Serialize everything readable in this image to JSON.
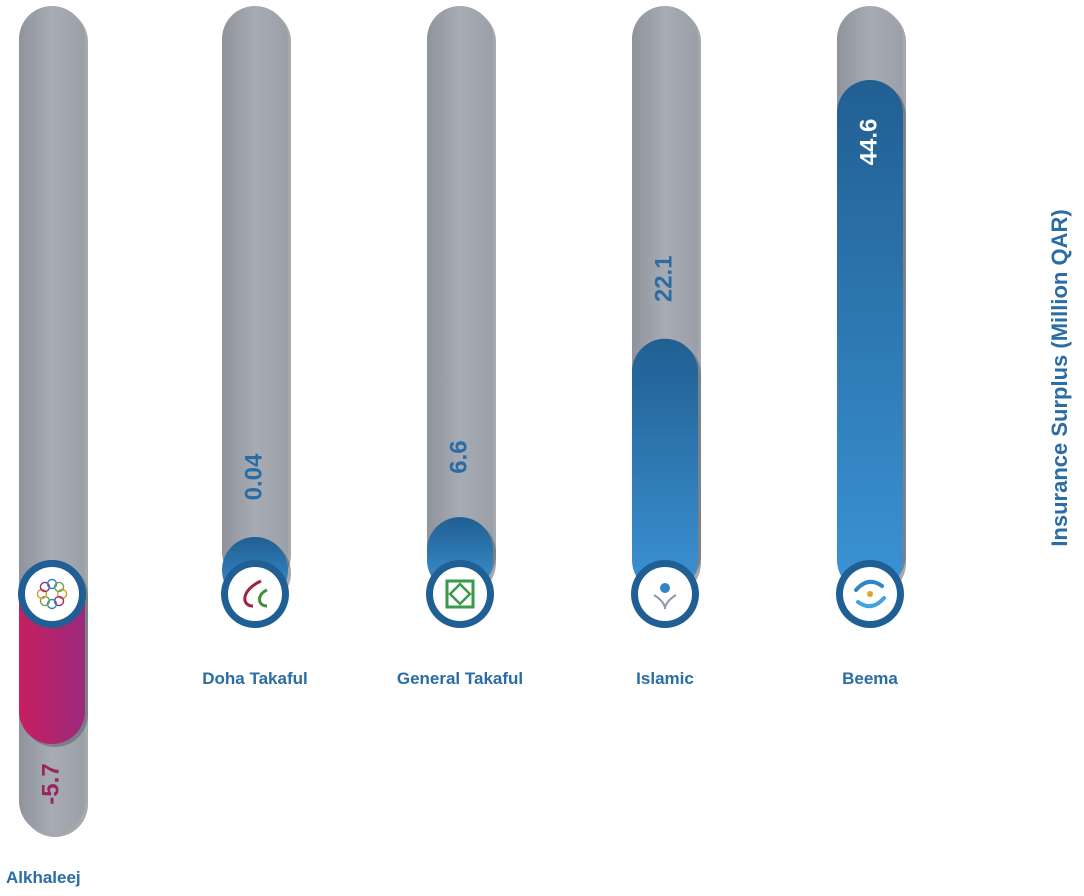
{
  "chart_data": {
    "type": "bar",
    "ylabel": "Insurance Surplus (Million QAR)",
    "categories": [
      "Alkhaleej",
      "Doha Takaful",
      "General Takaful",
      "Islamic",
      "Beema"
    ],
    "values": [
      -5.7,
      0.04,
      6.6,
      22.1,
      44.6
    ],
    "value_labels": [
      "-5.7",
      "0.04",
      "6.6",
      "22.1",
      "44.6"
    ],
    "ylim": [
      -5.7,
      44.6
    ],
    "grid": false,
    "legend": "none",
    "logos": [
      "alkhaleej-logo",
      "doha-takaful-logo",
      "general-takaful-logo",
      "islamic-logo",
      "beema-logo"
    ]
  },
  "colors": {
    "positive_fill": "#2e86c8",
    "negative_fill": "#b81f6a",
    "track": "#a3a7b0",
    "label_positive": "#2a6ca4",
    "label_negative": "#9a2361",
    "label_on_fill": "#ffffff"
  }
}
